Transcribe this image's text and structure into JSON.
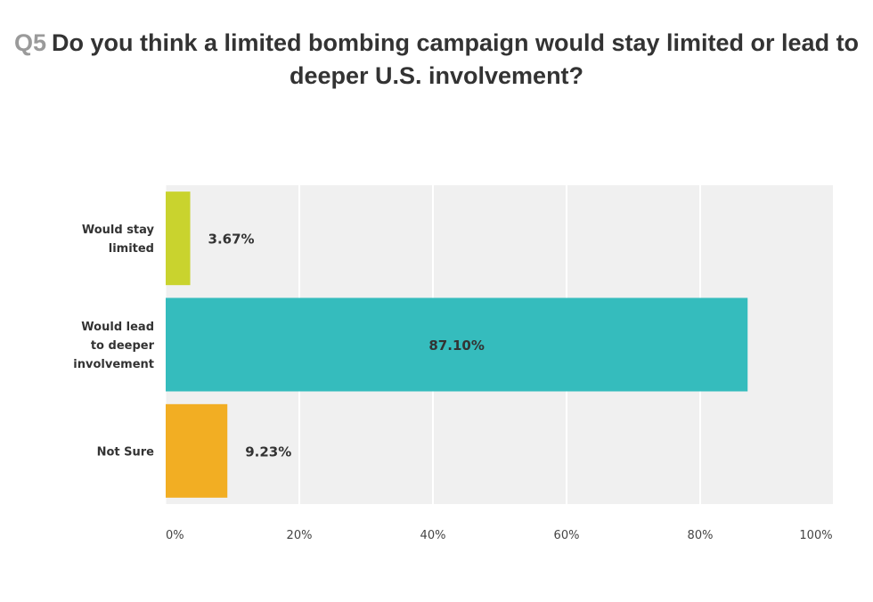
{
  "question_number": "Q5",
  "question_text": "Do you think a limited bombing campaign would stay limited or lead to deeper U.S. involvement?",
  "chart_data": {
    "type": "bar",
    "orientation": "horizontal",
    "categories": [
      "Would stay limited",
      "Would lead to deeper involvement",
      "Not Sure"
    ],
    "category_label_lines": [
      [
        "Would stay",
        "limited"
      ],
      [
        "Would lead",
        "to deeper",
        "involvement"
      ],
      [
        "Not Sure"
      ]
    ],
    "values": [
      3.67,
      87.1,
      9.23
    ],
    "value_labels": [
      "3.67%",
      "87.10%",
      "9.23%"
    ],
    "value_label_position": [
      "outside",
      "inside",
      "outside"
    ],
    "colors": [
      "#c9d32e",
      "#35bcbd",
      "#f2ae23"
    ],
    "xlim": [
      0,
      100
    ],
    "xticks": [
      0,
      20,
      40,
      60,
      80,
      100
    ],
    "xtick_labels": [
      "0%",
      "20%",
      "40%",
      "60%",
      "80%",
      "100%"
    ],
    "grid": true,
    "plot_background": "#f0f0f0",
    "grid_color": "#ffffff"
  }
}
